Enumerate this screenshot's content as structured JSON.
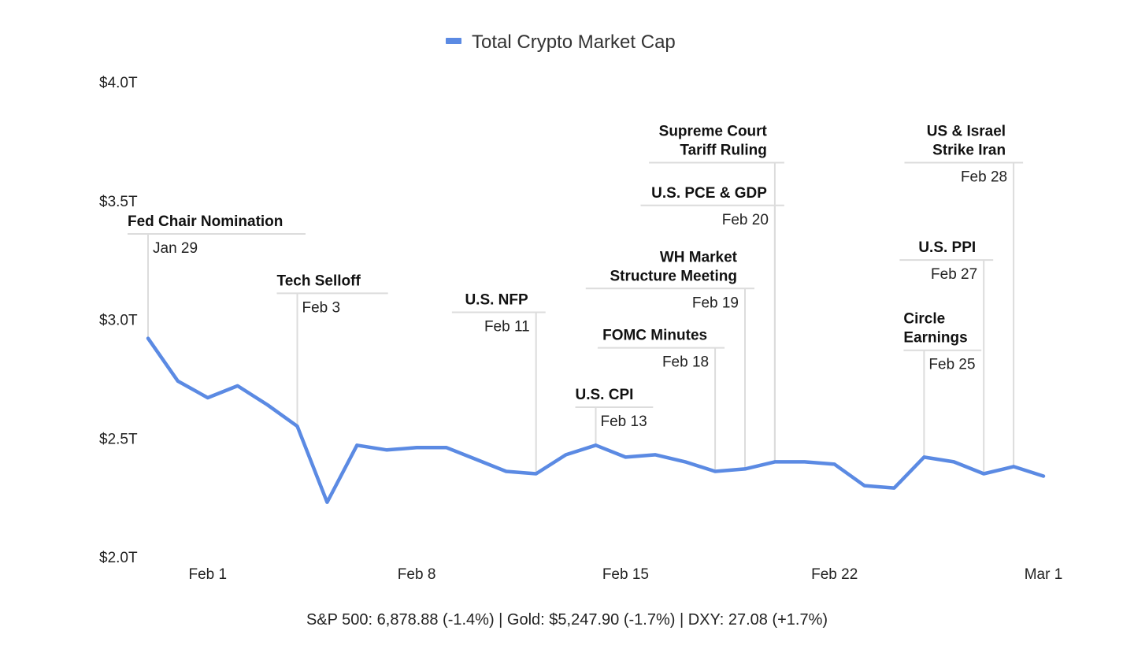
{
  "chart_data": {
    "type": "line",
    "legend": {
      "label": "Total Crypto Market Cap",
      "color": "#5b8ae3",
      "position": "top-center"
    },
    "y_ticks": [
      "$2.0T",
      "$2.5T",
      "$3.0T",
      "$3.5T",
      "$4.0T"
    ],
    "ylim": [
      2.0,
      4.0
    ],
    "x_ticks": [
      {
        "label": "Feb 1",
        "day": 3
      },
      {
        "label": "Feb 8",
        "day": 10
      },
      {
        "label": "Feb 15",
        "day": 17
      },
      {
        "label": "Feb 22",
        "day": 24
      },
      {
        "label": "Mar 1",
        "day": 31
      }
    ],
    "x_range_days": [
      1,
      31
    ],
    "series": [
      {
        "name": "Total Crypto Market Cap",
        "color": "#5b8ae3",
        "points": [
          {
            "day": 1,
            "value": 2.92
          },
          {
            "day": 2,
            "value": 2.74
          },
          {
            "day": 3,
            "value": 2.67
          },
          {
            "day": 4,
            "value": 2.72
          },
          {
            "day": 5,
            "value": 2.64
          },
          {
            "day": 6,
            "value": 2.55
          },
          {
            "day": 7,
            "value": 2.23
          },
          {
            "day": 8,
            "value": 2.47
          },
          {
            "day": 9,
            "value": 2.45
          },
          {
            "day": 10,
            "value": 2.46
          },
          {
            "day": 11,
            "value": 2.46
          },
          {
            "day": 12,
            "value": 2.41
          },
          {
            "day": 13,
            "value": 2.36
          },
          {
            "day": 14,
            "value": 2.35
          },
          {
            "day": 15,
            "value": 2.43
          },
          {
            "day": 16,
            "value": 2.47
          },
          {
            "day": 17,
            "value": 2.42
          },
          {
            "day": 18,
            "value": 2.43
          },
          {
            "day": 19,
            "value": 2.4
          },
          {
            "day": 20,
            "value": 2.36
          },
          {
            "day": 21,
            "value": 2.37
          },
          {
            "day": 22,
            "value": 2.4
          },
          {
            "day": 23,
            "value": 2.4
          },
          {
            "day": 24,
            "value": 2.39
          },
          {
            "day": 25,
            "value": 2.3
          },
          {
            "day": 26,
            "value": 2.29
          },
          {
            "day": 27,
            "value": 2.42
          },
          {
            "day": 28,
            "value": 2.4
          },
          {
            "day": 29,
            "value": 2.35
          },
          {
            "day": 30,
            "value": 2.38
          },
          {
            "day": 31,
            "value": 2.34
          }
        ]
      }
    ],
    "annotations": [
      {
        "title": [
          "Fed Chair Nomination"
        ],
        "date": "Jan 29",
        "day": 1,
        "level": 3.36,
        "align": "left"
      },
      {
        "title": [
          "Tech Selloff"
        ],
        "date": "Feb 3",
        "day": 6,
        "level": 3.11,
        "align": "left"
      },
      {
        "title": [
          "U.S. NFP"
        ],
        "date": "Feb 11",
        "day": 14,
        "level": 3.03,
        "align": "right"
      },
      {
        "title": [
          "U.S. CPI"
        ],
        "date": "Feb 13",
        "day": 16,
        "level": 2.63,
        "align": "left"
      },
      {
        "title": [
          "FOMC Minutes"
        ],
        "date": "Feb 18",
        "day": 20,
        "level": 2.88,
        "align": "right"
      },
      {
        "title": [
          "WH Market",
          "Structure Meeting"
        ],
        "date": "Feb 19",
        "day": 21,
        "level": 3.13,
        "align": "right"
      },
      {
        "title": [
          "U.S. PCE & GDP"
        ],
        "date": "Feb 20",
        "day": 22,
        "level": 3.48,
        "align": "right"
      },
      {
        "title": [
          "Supreme Court",
          "Tariff Ruling"
        ],
        "date": "Feb 20",
        "day": 22,
        "level": 3.66,
        "align": "right",
        "hide_date": true
      },
      {
        "title": [
          "Circle",
          "Earnings"
        ],
        "date": "Feb 25",
        "day": 27,
        "level": 2.87,
        "align": "left"
      },
      {
        "title": [
          "U.S. PPI"
        ],
        "date": "Feb 27",
        "day": 29,
        "level": 3.25,
        "align": "right"
      },
      {
        "title": [
          "US & Israel",
          "Strike Iran"
        ],
        "date": "Feb 28",
        "day": 30,
        "level": 3.66,
        "align": "right"
      }
    ]
  },
  "footer": {
    "text": "S&P 500: 6,878.88 (-1.4%) | Gold: $5,247.90 (-1.7%) | DXY: 27.08 (+1.7%)"
  }
}
